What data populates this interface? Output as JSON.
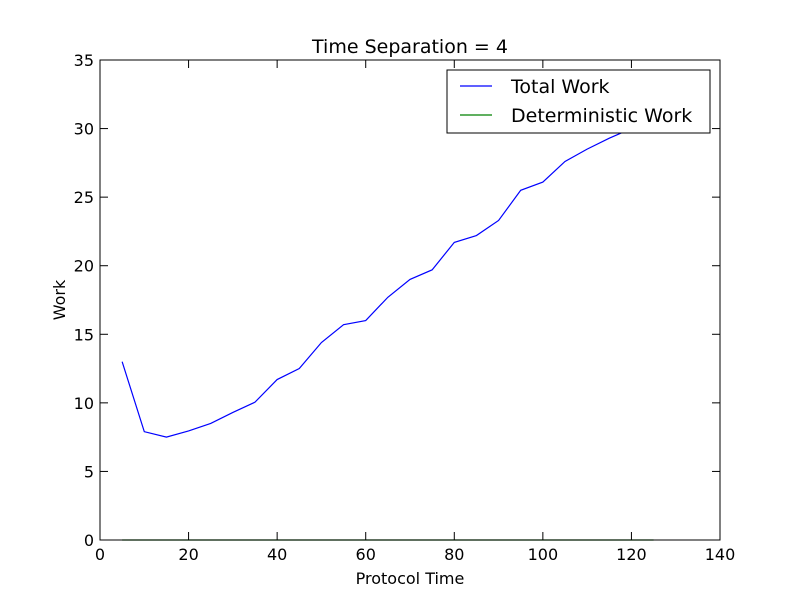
{
  "chart_data": {
    "type": "line",
    "title": "Time Separation = 4",
    "xlabel": "Protocol Time",
    "ylabel": "Work",
    "xlim": [
      0,
      140
    ],
    "ylim": [
      0,
      35
    ],
    "xticks": [
      0,
      20,
      40,
      60,
      80,
      100,
      120,
      140
    ],
    "yticks": [
      0,
      5,
      10,
      15,
      20,
      25,
      30,
      35
    ],
    "grid": false,
    "legend_position": "top-right",
    "series": [
      {
        "name": "Total Work",
        "color": "#0000ff",
        "x": [
          5,
          10,
          15,
          20,
          25,
          30,
          35,
          40,
          45,
          50,
          55,
          60,
          65,
          70,
          75,
          80,
          85,
          90,
          95,
          100,
          105,
          110,
          115,
          120,
          125
        ],
        "y": [
          13.0,
          7.9,
          7.5,
          7.95,
          8.5,
          9.3,
          10.05,
          11.7,
          12.5,
          14.4,
          15.7,
          16.0,
          17.7,
          19.0,
          19.7,
          21.7,
          22.2,
          23.3,
          25.5,
          26.1,
          27.6,
          28.5,
          29.3,
          30.0,
          30.3
        ]
      },
      {
        "name": "Deterministic Work",
        "color": "#008000",
        "x": [
          5,
          125
        ],
        "y": [
          0,
          0
        ]
      }
    ]
  }
}
